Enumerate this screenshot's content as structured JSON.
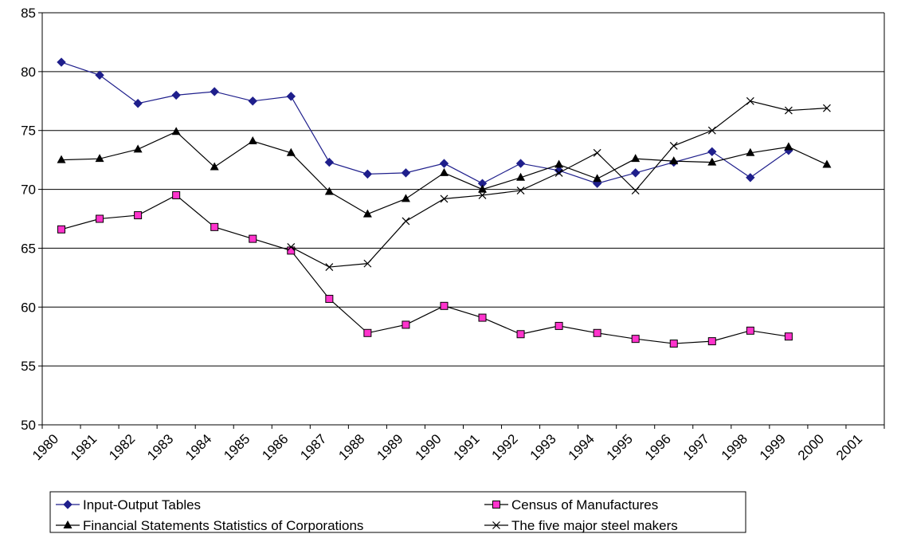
{
  "chart_data": {
    "type": "line",
    "title": "",
    "xlabel": "",
    "ylabel": "",
    "ylim": [
      50,
      85
    ],
    "yticks": [
      "50",
      "55",
      "60",
      "65",
      "70",
      "75",
      "80",
      "85"
    ],
    "categories": [
      "1980",
      "1981",
      "1982",
      "1983",
      "1984",
      "1985",
      "1986",
      "1987",
      "1988",
      "1989",
      "1990",
      "1991",
      "1992",
      "1993",
      "1994",
      "1995",
      "1996",
      "1997",
      "1998",
      "1999",
      "2000",
      "2001"
    ],
    "grid": "horizontal",
    "legend_position": "bottom",
    "series": [
      {
        "name": "Input-Output Tables",
        "color": "#1F1F8C",
        "marker": "diamond",
        "values": [
          80.8,
          79.7,
          77.3,
          78.0,
          78.3,
          77.5,
          77.9,
          72.3,
          71.3,
          71.4,
          72.2,
          70.5,
          72.2,
          71.6,
          70.5,
          71.4,
          72.3,
          73.2,
          71.0,
          73.3,
          null,
          null
        ]
      },
      {
        "name": "Census of Manufactures",
        "color": "#000000",
        "marker_fill": "#FF33CC",
        "marker": "square",
        "values": [
          66.6,
          67.5,
          67.8,
          69.5,
          66.8,
          65.8,
          64.8,
          60.7,
          57.8,
          58.5,
          60.1,
          59.1,
          57.7,
          58.4,
          57.8,
          57.3,
          56.9,
          57.1,
          58.0,
          57.5,
          null,
          null
        ]
      },
      {
        "name": "Financial Statements Statistics of Corporations",
        "color": "#000000",
        "marker": "triangle",
        "values": [
          72.5,
          72.6,
          73.4,
          74.9,
          71.9,
          74.1,
          73.1,
          69.8,
          67.9,
          69.2,
          71.4,
          70.0,
          71.0,
          72.1,
          70.9,
          72.6,
          72.4,
          72.3,
          73.1,
          73.6,
          72.1,
          null
        ]
      },
      {
        "name": "The five major steel makers",
        "color": "#000000",
        "marker": "x",
        "values": [
          null,
          null,
          null,
          null,
          null,
          null,
          65.1,
          63.4,
          63.7,
          67.3,
          69.2,
          69.5,
          69.9,
          71.4,
          73.1,
          69.9,
          73.7,
          75.0,
          77.5,
          76.7,
          76.9,
          null
        ]
      }
    ]
  }
}
